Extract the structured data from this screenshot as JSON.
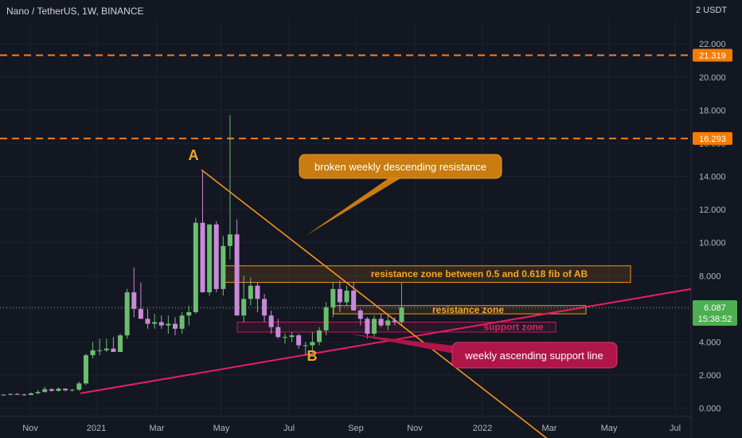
{
  "header": {
    "title": "Nano / TetherUS, 1W, BINANCE",
    "currency": "2 USDT"
  },
  "colors": {
    "background": "#131722",
    "bull": "#6abe6e",
    "bear": "#c88ad6",
    "orange": "#f7931a",
    "pink": "#e91e63",
    "axis_text": "#b2b5be"
  },
  "price_tag": {
    "value": "6.087",
    "countdown": "15:38:52"
  },
  "chart_data": {
    "type": "candlestick",
    "title": "Nano / TetherUS, 1W, BINANCE",
    "ylim": [
      -0.5,
      23.5
    ],
    "yticks": [
      "0.000",
      "2.000",
      "4.000",
      "6.000",
      "8.000",
      "10.000",
      "12.000",
      "14.000",
      "16.000",
      "18.000",
      "20.000",
      "22.000"
    ],
    "xticks": [
      "Nov",
      "2021",
      "Mar",
      "May",
      "Jul",
      "Sep",
      "Nov",
      "2022",
      "Mar",
      "May",
      "Jul"
    ],
    "horizontal_levels": [
      {
        "value": 21.319,
        "label": "21.319"
      },
      {
        "value": 16.293,
        "label": "16.293"
      }
    ],
    "candles": [
      [
        0.8,
        0.85,
        0.75,
        0.82
      ],
      [
        0.82,
        0.9,
        0.78,
        0.86
      ],
      [
        0.86,
        0.92,
        0.8,
        0.83
      ],
      [
        0.83,
        0.88,
        0.76,
        0.8
      ],
      [
        0.8,
        0.95,
        0.78,
        0.9
      ],
      [
        0.9,
        1.1,
        0.85,
        0.98
      ],
      [
        0.98,
        1.3,
        0.95,
        1.15
      ],
      [
        1.15,
        1.2,
        1.0,
        1.05
      ],
      [
        1.05,
        1.25,
        1.0,
        1.18
      ],
      [
        1.18,
        1.2,
        1.02,
        1.08
      ],
      [
        1.08,
        1.15,
        1.0,
        1.12
      ],
      [
        1.12,
        1.6,
        1.05,
        1.5
      ],
      [
        1.5,
        3.3,
        1.4,
        3.2
      ],
      [
        3.2,
        4.0,
        3.0,
        3.5
      ],
      [
        3.5,
        4.2,
        3.2,
        3.5
      ],
      [
        3.5,
        4.2,
        3.4,
        3.6
      ],
      [
        3.6,
        4.3,
        3.4,
        3.4
      ],
      [
        3.4,
        4.5,
        3.4,
        4.4
      ],
      [
        4.4,
        7.2,
        4.2,
        7.0
      ],
      [
        7.0,
        8.5,
        5.5,
        6.0
      ],
      [
        6.0,
        7.6,
        5.4,
        5.4
      ],
      [
        5.4,
        6.0,
        4.8,
        5.1
      ],
      [
        5.1,
        5.7,
        4.8,
        5.2
      ],
      [
        5.2,
        5.6,
        4.8,
        5.0
      ],
      [
        5.0,
        5.6,
        4.5,
        5.1
      ],
      [
        5.1,
        5.5,
        4.4,
        4.8
      ],
      [
        4.8,
        5.8,
        4.5,
        5.6
      ],
      [
        5.6,
        6.2,
        5.0,
        5.8
      ],
      [
        5.8,
        11.5,
        5.7,
        11.2
      ],
      [
        11.2,
        14.3,
        7.0,
        7.0
      ],
      [
        7.0,
        11.1,
        6.8,
        11.1
      ],
      [
        11.1,
        11.3,
        7.0,
        7.2
      ],
      [
        7.2,
        10.4,
        6.8,
        9.8
      ],
      [
        9.8,
        17.7,
        9.0,
        10.5
      ],
      [
        10.5,
        11.4,
        5.6,
        5.6
      ],
      [
        5.6,
        8.0,
        5.2,
        6.6
      ],
      [
        6.6,
        7.9,
        6.2,
        7.4
      ],
      [
        7.4,
        7.6,
        5.8,
        6.6
      ],
      [
        6.6,
        6.9,
        5.2,
        5.6
      ],
      [
        5.6,
        5.9,
        4.5,
        4.9
      ],
      [
        4.9,
        5.4,
        4.2,
        4.3
      ],
      [
        4.3,
        4.5,
        3.9,
        4.3
      ],
      [
        4.3,
        4.6,
        4.0,
        4.4
      ],
      [
        4.4,
        4.5,
        3.6,
        3.8
      ],
      [
        3.8,
        4.0,
        3.2,
        3.8
      ],
      [
        3.8,
        4.6,
        3.3,
        4.0
      ],
      [
        4.0,
        4.9,
        3.8,
        4.7
      ],
      [
        4.7,
        6.4,
        4.4,
        6.1
      ],
      [
        6.1,
        7.6,
        5.5,
        7.2
      ],
      [
        7.2,
        7.7,
        5.8,
        6.4
      ],
      [
        6.4,
        7.4,
        6.2,
        7.1
      ],
      [
        7.1,
        7.6,
        5.9,
        5.9
      ],
      [
        5.9,
        6.0,
        5.0,
        5.4
      ],
      [
        5.4,
        5.5,
        4.2,
        4.5
      ],
      [
        4.5,
        5.6,
        4.2,
        5.4
      ],
      [
        5.4,
        5.7,
        4.9,
        5.0
      ],
      [
        5.0,
        5.6,
        4.7,
        5.3
      ],
      [
        5.3,
        5.5,
        5.0,
        5.2
      ],
      [
        5.2,
        7.6,
        5.0,
        6.09
      ]
    ]
  },
  "annotations": {
    "label_a": "A",
    "label_b": "B",
    "callout_resistance_break": "broken weekly descending resistance",
    "callout_support": "weekly ascending support line",
    "zone_fib": "resistance zone between 0.5 and 0.618 fib of AB",
    "zone_resistance": "resistance zone",
    "zone_support": "support zone"
  }
}
